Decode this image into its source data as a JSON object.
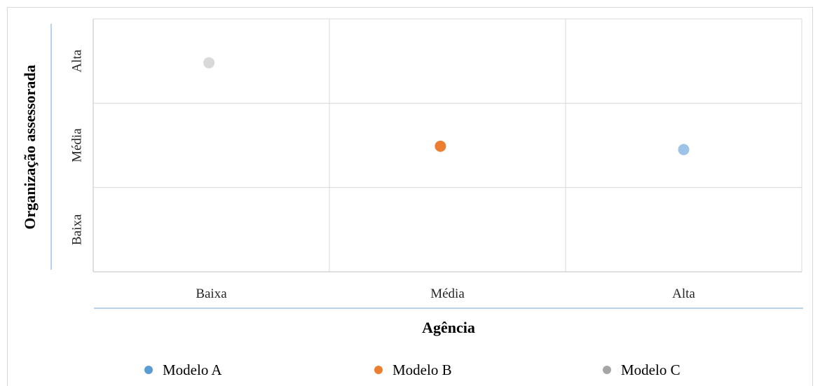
{
  "chart_data": {
    "type": "scatter",
    "title": "",
    "xlabel": "Agência",
    "ylabel": "Organização assessorada",
    "x_categories": [
      "Baixa",
      "Média",
      "Alta"
    ],
    "y_categories": [
      "Baixa",
      "Média",
      "Alta"
    ],
    "xlim": [
      0,
      3
    ],
    "ylim": [
      0,
      3
    ],
    "grid": true,
    "legend_position": "bottom",
    "series": [
      {
        "name": "Modelo A",
        "color": "#9dc3e6",
        "legend_color": "#5b9bd5",
        "points": [
          {
            "x": 2.5,
            "y": 1.45
          }
        ]
      },
      {
        "name": "Modelo B",
        "color": "#ed7d31",
        "legend_color": "#ed7d31",
        "points": [
          {
            "x": 1.47,
            "y": 1.49
          }
        ]
      },
      {
        "name": "Modelo C",
        "color": "#d9d9d9",
        "legend_color": "#a5a5a5",
        "points": [
          {
            "x": 0.49,
            "y": 2.48
          }
        ]
      }
    ]
  }
}
